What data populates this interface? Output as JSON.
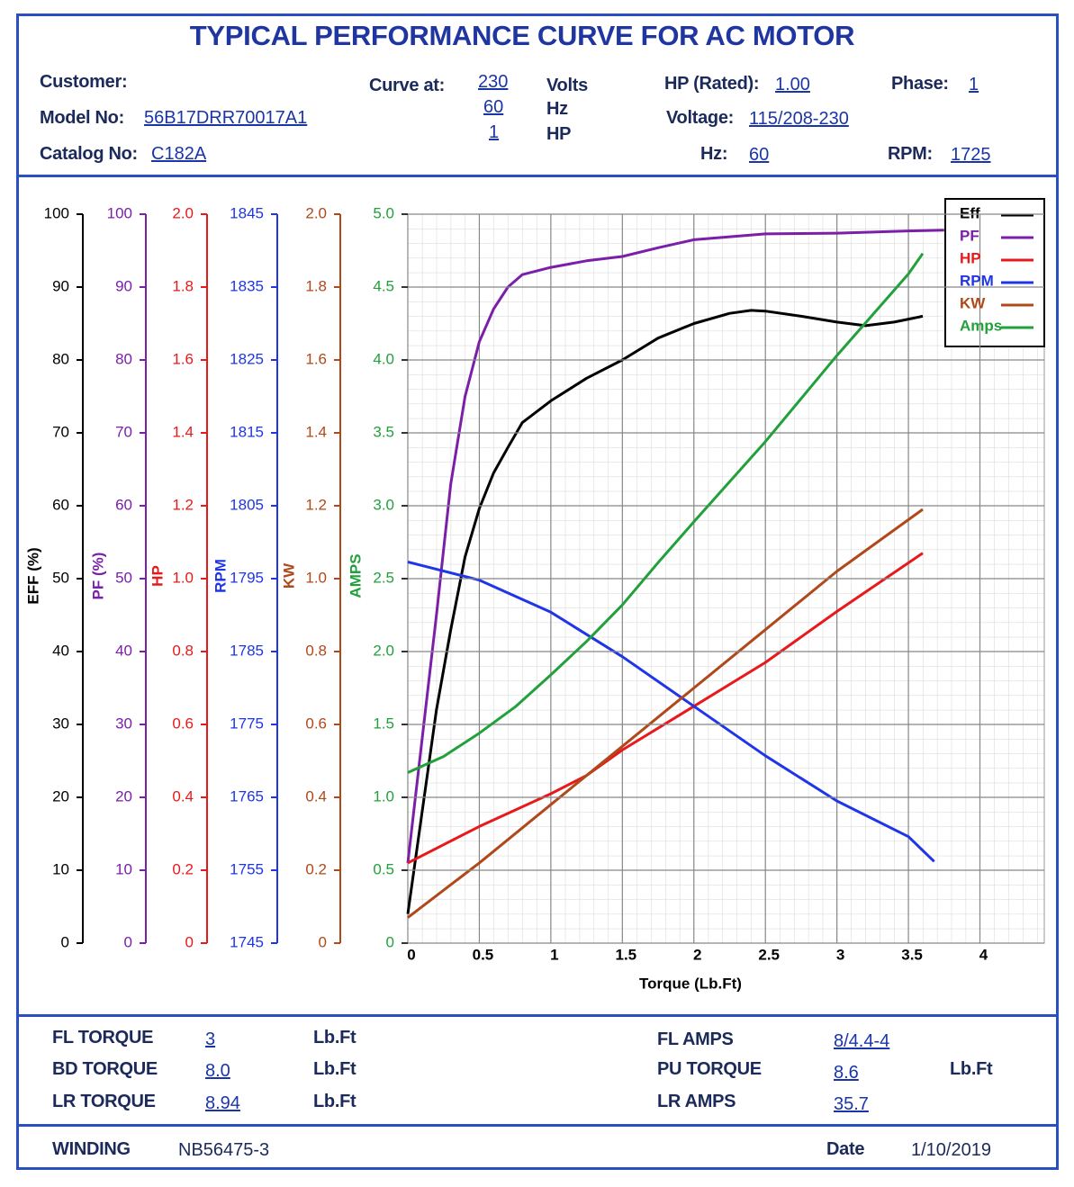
{
  "header": {
    "title": "TYPICAL PERFORMANCE CURVE FOR AC MOTOR",
    "customer": {
      "label": "Customer:"
    },
    "model": {
      "label": "Model No:",
      "value": "56B17DRR70017A1"
    },
    "catalog": {
      "label": "Catalog No:",
      "value": "C182A"
    },
    "curve_at": {
      "label": "Curve at:",
      "values": [
        "230",
        "60",
        "1"
      ],
      "units": [
        "Volts",
        "Hz",
        "HP"
      ]
    },
    "hp_rated": {
      "label": "HP (Rated):",
      "value": "1.00"
    },
    "voltage": {
      "label": "Voltage:",
      "value": "115/208-230"
    },
    "phase": {
      "label": "Phase:",
      "value": "1"
    },
    "hz": {
      "label": "Hz:",
      "value": "60"
    },
    "rpm": {
      "label": "RPM:",
      "value": "1725"
    }
  },
  "chart_data": {
    "type": "line",
    "x_label": "Torque (Lb.Ft)",
    "xlim": [
      0,
      4.45
    ],
    "xticks": [
      0,
      0.5,
      1,
      1.5,
      2,
      2.5,
      3,
      3.5,
      4
    ],
    "grid": true,
    "legend": "top-right",
    "series": [
      {
        "name": "Eff",
        "axis_label": "EFF (%)",
        "color": "#000000",
        "ylim": [
          0,
          100
        ],
        "yticks": [
          0,
          10,
          20,
          30,
          40,
          50,
          60,
          70,
          80,
          90,
          100
        ],
        "x": [
          0,
          0.1,
          0.2,
          0.3,
          0.4,
          0.5,
          0.6,
          0.7,
          0.8,
          1.0,
          1.25,
          1.5,
          1.75,
          2,
          2.25,
          2.4,
          2.5,
          2.75,
          3,
          3.2,
          3.4,
          3.6
        ],
        "values": [
          4,
          18,
          32,
          43,
          53,
          59.6,
          64.5,
          68,
          71.4,
          74.4,
          77.5,
          80,
          83,
          85,
          86.4,
          86.8,
          86.7,
          86,
          85.2,
          84.7,
          85.2,
          86
        ]
      },
      {
        "name": "PF",
        "axis_label": "PF (%)",
        "color": "#7b1fa8",
        "ylim": [
          0,
          100
        ],
        "yticks": [
          0,
          10,
          20,
          30,
          40,
          50,
          60,
          70,
          80,
          90,
          100
        ],
        "x": [
          0,
          0.1,
          0.2,
          0.3,
          0.4,
          0.5,
          0.6,
          0.7,
          0.8,
          1.0,
          1.25,
          1.5,
          1.75,
          2,
          2.5,
          3,
          3.5,
          3.75
        ],
        "values": [
          11,
          28,
          45,
          63,
          75,
          82.5,
          87,
          90,
          91.7,
          92.7,
          93.6,
          94.2,
          95.4,
          96.5,
          97.3,
          97.4,
          97.7,
          97.8
        ]
      },
      {
        "name": "HP",
        "axis_label": "HP",
        "color": "#e8191b",
        "ylim": [
          0,
          2
        ],
        "yticks": [
          0,
          0.2,
          0.4,
          0.6,
          0.8,
          {
            "value": 1,
            "label": "1.0"
          },
          1.2,
          1.4,
          1.6,
          1.8,
          {
            "value": 2,
            "label": "2.0"
          }
        ],
        "x": [
          0,
          0.5,
          1.0,
          1.25,
          1.5,
          2,
          2.5,
          3,
          3.6
        ],
        "values": [
          0.22,
          0.32,
          0.41,
          0.46,
          0.53,
          0.65,
          0.77,
          0.91,
          1.07
        ]
      },
      {
        "name": "RPM",
        "axis_label": "RPM",
        "color": "#1f35e8",
        "ylim": [
          1745,
          1845
        ],
        "yticks": [
          1745,
          1755,
          1765,
          1775,
          1785,
          1795,
          1805,
          1815,
          1825,
          1835,
          1845
        ],
        "x": [
          0,
          0.5,
          1,
          1.5,
          2,
          2.5,
          3,
          3.5,
          3.68
        ],
        "values": [
          1797.3,
          1794.8,
          1790.4,
          1784.3,
          1777.5,
          1770.7,
          1764.5,
          1759.6,
          1756.2
        ]
      },
      {
        "name": "KW",
        "axis_label": "KW",
        "color": "#b0481a",
        "ylim": [
          0,
          2
        ],
        "yticks": [
          0,
          0.2,
          0.4,
          0.6,
          0.8,
          {
            "value": 1,
            "label": "1.0"
          },
          1.2,
          1.4,
          1.6,
          1.8,
          {
            "value": 2,
            "label": "2.0"
          }
        ],
        "x": [
          0,
          0.5,
          1,
          1.5,
          2,
          2.5,
          3,
          3.6
        ],
        "values": [
          0.07,
          0.22,
          0.38,
          0.54,
          0.7,
          0.86,
          1.02,
          1.19
        ]
      },
      {
        "name": "Amps",
        "axis_label": "AMPS",
        "color": "#22a03c",
        "ylim": [
          0,
          5
        ],
        "yticks": [
          0,
          0.5,
          {
            "value": 1,
            "label": "1.0"
          },
          1.5,
          {
            "value": 2,
            "label": "2.0"
          },
          2.5,
          {
            "value": 3,
            "label": "3.0"
          },
          3.5,
          {
            "value": 4,
            "label": "4.0"
          },
          4.5,
          {
            "value": 5,
            "label": "5.0"
          }
        ],
        "x": [
          0,
          0.25,
          0.5,
          0.75,
          1,
          1.25,
          1.5,
          1.75,
          2,
          2.5,
          3,
          3.5,
          3.6
        ],
        "values": [
          1.17,
          1.28,
          1.44,
          1.62,
          1.84,
          2.07,
          2.32,
          2.61,
          2.89,
          3.44,
          4.03,
          4.59,
          4.73
        ]
      }
    ]
  },
  "specs": {
    "fl_torque": {
      "label": "FL TORQUE",
      "value": "3",
      "unit": "Lb.Ft"
    },
    "bd_torque": {
      "label": "BD TORQUE",
      "value": "8.0",
      "unit": "Lb.Ft"
    },
    "lr_torque": {
      "label": "LR TORQUE",
      "value": "8.94",
      "unit": "Lb.Ft"
    },
    "fl_amps": {
      "label": "FL AMPS",
      "value": "8/4.4-4"
    },
    "pu_torque": {
      "label": "PU TORQUE",
      "value": "8.6",
      "unit": "Lb.Ft"
    },
    "lr_amps": {
      "label": "LR AMPS",
      "value": "35.7"
    }
  },
  "footer": {
    "winding": {
      "label": "WINDING",
      "value": "NB56475-3"
    },
    "date": {
      "label": "Date",
      "value": "1/10/2019"
    }
  }
}
